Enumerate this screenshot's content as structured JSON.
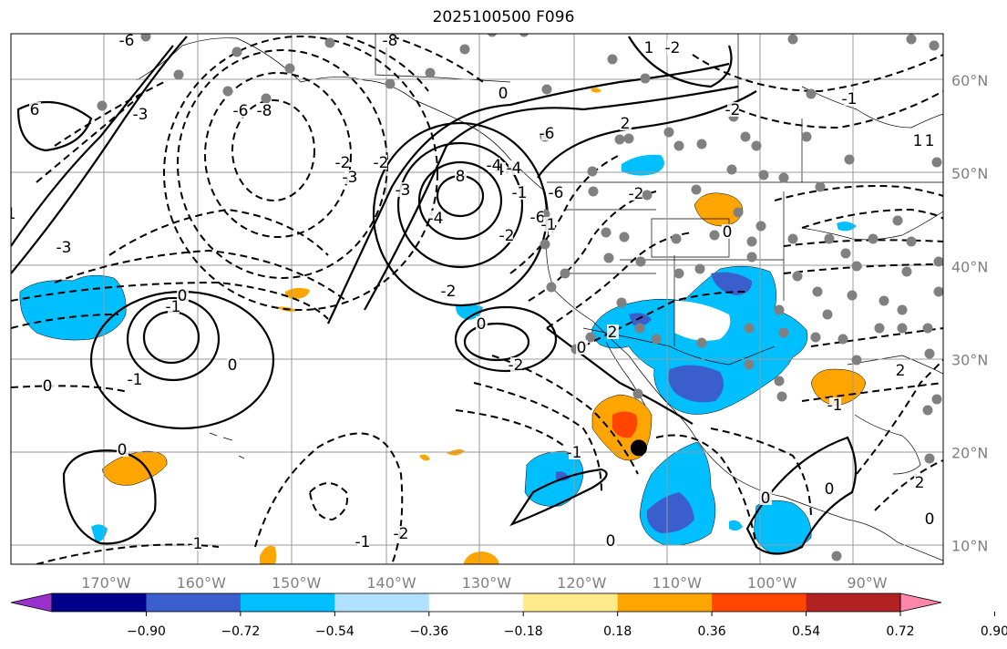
{
  "title": "2025100500 F096",
  "map": {
    "projection": "plate-carree",
    "lon_range": [
      -180,
      -82
    ],
    "lat_range": [
      8,
      65
    ],
    "gridlines": true,
    "coastlines": true,
    "borders": true
  },
  "lon_ticks": [
    {
      "value": -170,
      "label": "170°W"
    },
    {
      "value": -160,
      "label": "160°W"
    },
    {
      "value": -150,
      "label": "150°W"
    },
    {
      "value": -140,
      "label": "140°W"
    },
    {
      "value": -130,
      "label": "130°W"
    },
    {
      "value": -120,
      "label": "120°W"
    },
    {
      "value": -110,
      "label": "110°W"
    },
    {
      "value": -100,
      "label": "100°W"
    },
    {
      "value": -90,
      "label": "90°W"
    }
  ],
  "lat_ticks": [
    {
      "value": 60,
      "label": "60°N"
    },
    {
      "value": 50,
      "label": "50°N"
    },
    {
      "value": 40,
      "label": "40°N"
    },
    {
      "value": 30,
      "label": "30°N"
    },
    {
      "value": 20,
      "label": "20°N"
    },
    {
      "value": 10,
      "label": "10°N"
    }
  ],
  "colorbar": {
    "labels": [
      "−0.90",
      "−0.72",
      "−0.54",
      "−0.36",
      "−0.18",
      "0.18",
      "0.36",
      "0.54",
      "0.72",
      "0.90"
    ],
    "colors": [
      "#9932cc",
      "#00008b",
      "#3a5fcd",
      "#00bfff",
      "#b0e2ff",
      "#ffffff",
      "#fdea8a",
      "#ffa500",
      "#ff4500",
      "#b22222",
      "#ff85aa"
    ]
  },
  "contour_labels": [
    "-8",
    "6",
    "-6",
    "-3",
    "-6",
    "-8",
    "0",
    "-6",
    "-6",
    "-4",
    "-2",
    "-3",
    "-3",
    "8",
    "4",
    "-1",
    "-6",
    "-4",
    "-2",
    "-2",
    "-1",
    "0",
    "2",
    "-2",
    "2",
    "1",
    "-2",
    "-2",
    "-1",
    "1",
    "0",
    "0",
    "-1",
    "0",
    "-1",
    "0",
    "0",
    "0",
    "-2",
    "-1",
    "-1",
    "-2",
    "-1",
    "0",
    "0",
    "0",
    "2",
    "-1",
    "2",
    "0",
    "1",
    "-3",
    "-2",
    "1",
    "-4"
  ],
  "marker": {
    "lon": -114,
    "lat": 20.5
  }
}
